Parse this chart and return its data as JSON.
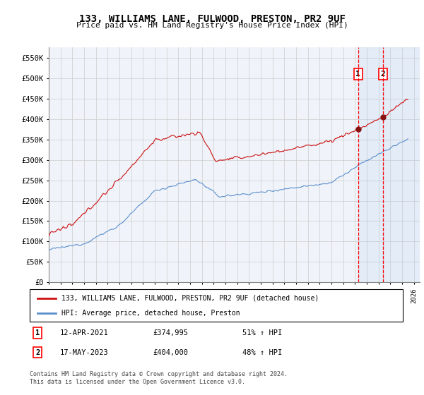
{
  "title": "133, WILLIAMS LANE, FULWOOD, PRESTON, PR2 9UF",
  "subtitle": "Price paid vs. HM Land Registry's House Price Index (HPI)",
  "legend_line1": "133, WILLIAMS LANE, FULWOOD, PRESTON, PR2 9UF (detached house)",
  "legend_line2": "HPI: Average price, detached house, Preston",
  "sale1_date": "12-APR-2021",
  "sale1_price": 374995,
  "sale1_hpi": "51% ↑ HPI",
  "sale2_date": "17-MAY-2023",
  "sale2_price": 404000,
  "sale2_hpi": "48% ↑ HPI",
  "sale1_x": 2021.27,
  "sale2_x": 2023.37,
  "footer": "Contains HM Land Registry data © Crown copyright and database right 2024.\nThis data is licensed under the Open Government Licence v3.0.",
  "hpi_color": "#5b8fcc",
  "price_color": "#cc1111",
  "xlim_left": 1995.0,
  "xlim_right": 2026.5,
  "ylim_bottom": 0,
  "ylim_top": 575000,
  "bg_color": "#f0f4fa",
  "grid_color": "#cccccc"
}
